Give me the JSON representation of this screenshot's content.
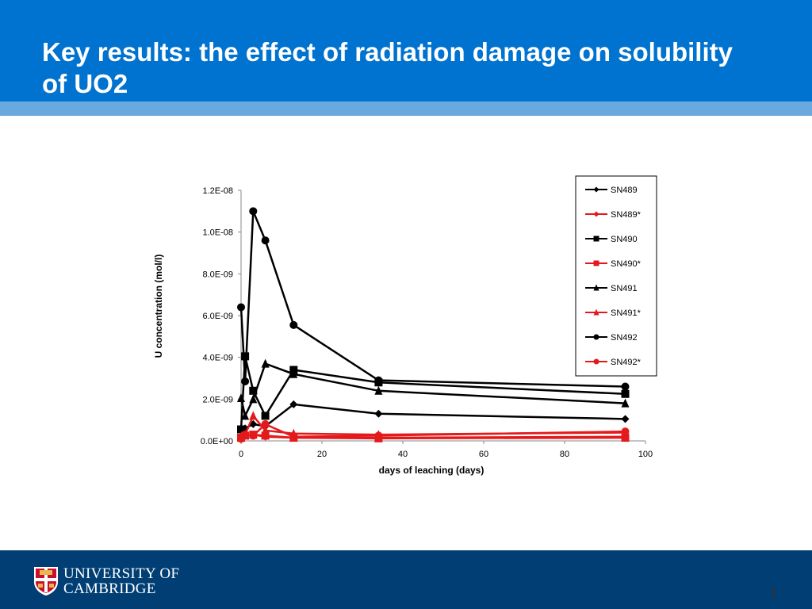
{
  "slide": {
    "title": "Key results: the effect of radiation damage on solubility of UO2",
    "page_number": "1",
    "colors": {
      "header": "#0072CF",
      "stripe": "#6AA8E0",
      "footer": "#003E74"
    }
  },
  "branding": {
    "logo_icon": "cambridge-shield-icon",
    "line1": "UNIVERSITY OF",
    "line2": "CAMBRIDGE"
  },
  "chart_data": {
    "type": "line",
    "title": "",
    "xlabel": "days of leaching (days)",
    "ylabel": "U concentration (mol/l)",
    "xlim": [
      0,
      100
    ],
    "ylim": [
      0,
      1.2e-08
    ],
    "xticks": [
      0,
      20,
      40,
      60,
      80,
      100
    ],
    "yticks": [
      0,
      2e-09,
      4e-09,
      6e-09,
      8e-09,
      1e-08,
      1.2e-08
    ],
    "xtick_labels": [
      "0",
      "20",
      "40",
      "60",
      "80",
      "100"
    ],
    "ytick_labels": [
      "0.0E+00",
      "2.0E-09",
      "4.0E-09",
      "6.0E-09",
      "8.0E-09",
      "1.0E-08",
      "1.2E-08"
    ],
    "grid": false,
    "legend_position": "top-right",
    "series": [
      {
        "name": "SN489",
        "color": "#000000",
        "marker": "diamond",
        "x": [
          0,
          1,
          3,
          6,
          13,
          34,
          95
        ],
        "y": [
          1e-10,
          6e-10,
          8e-10,
          7e-10,
          1.75e-09,
          1.3e-09,
          1.05e-09
        ]
      },
      {
        "name": "SN489*",
        "color": "#E31A1C",
        "marker": "diamond",
        "x": [
          0,
          1,
          3,
          6,
          13,
          34,
          95
        ],
        "y": [
          1e-10,
          2.5e-10,
          3e-10,
          2e-10,
          1.5e-10,
          1.5e-10,
          2e-10
        ]
      },
      {
        "name": "SN490",
        "color": "#000000",
        "marker": "square",
        "x": [
          0,
          1,
          3,
          6,
          13,
          34,
          95
        ],
        "y": [
          5.5e-10,
          4.05e-09,
          2.4e-09,
          1.2e-09,
          3.4e-09,
          2.8e-09,
          2.25e-09
        ]
      },
      {
        "name": "SN490*",
        "color": "#E31A1C",
        "marker": "square",
        "x": [
          0,
          1,
          3,
          6,
          13,
          34,
          95
        ],
        "y": [
          1.5e-10,
          2.5e-10,
          3e-10,
          2.5e-10,
          1.5e-10,
          1.2e-10,
          1.5e-10
        ]
      },
      {
        "name": "SN491",
        "color": "#000000",
        "marker": "triangle",
        "x": [
          0,
          1,
          3,
          6,
          13,
          34,
          95
        ],
        "y": [
          2.05e-09,
          1.2e-09,
          2e-09,
          3.7e-09,
          3.2e-09,
          2.4e-09,
          1.8e-09
        ]
      },
      {
        "name": "SN491*",
        "color": "#E31A1C",
        "marker": "triangle",
        "x": [
          0,
          1,
          3,
          6,
          13,
          34,
          95
        ],
        "y": [
          2e-10,
          3e-10,
          1.2e-09,
          5e-10,
          3.5e-10,
          3e-10,
          4e-10
        ]
      },
      {
        "name": "SN492",
        "color": "#000000",
        "marker": "circle",
        "x": [
          0,
          1,
          3,
          6,
          13,
          34,
          95
        ],
        "y": [
          6.4e-09,
          2.85e-09,
          1.1e-08,
          9.6e-09,
          5.55e-09,
          2.9e-09,
          2.6e-09
        ]
      },
      {
        "name": "SN492*",
        "color": "#E31A1C",
        "marker": "circle",
        "x": [
          0,
          1,
          3,
          6,
          13,
          34,
          95
        ],
        "y": [
          1e-10,
          3e-10,
          2.5e-10,
          8e-10,
          2e-10,
          2.5e-10,
          4.5e-10
        ]
      }
    ]
  }
}
